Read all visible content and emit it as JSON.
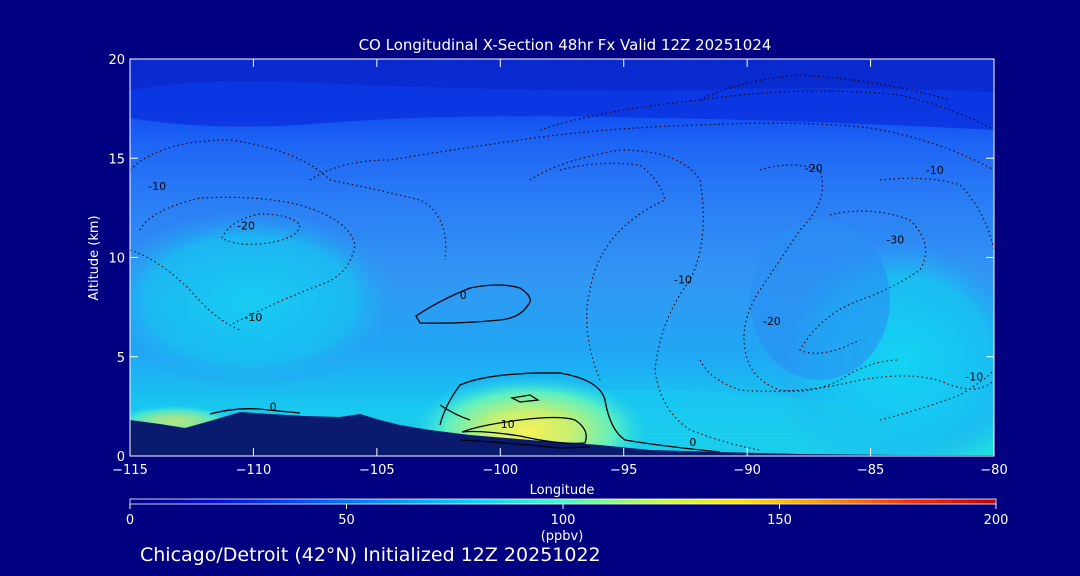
{
  "chart_data": {
    "type": "heatmap",
    "title": "CO Longitudinal X-Section 48hr  Fx Valid 12Z 20251024",
    "xlabel": "Longitude",
    "ylabel": "Altitude (km)",
    "xlim": [
      -115,
      -80
    ],
    "ylim": [
      0,
      20
    ],
    "xticks": [
      -115,
      -110,
      -105,
      -100,
      -95,
      -90,
      -85,
      -80
    ],
    "yticks": [
      0,
      5,
      10,
      15,
      20
    ],
    "xtick_labels": [
      "−115",
      "−110",
      "−105",
      "−100",
      "−95",
      "−90",
      "−85",
      "−80"
    ],
    "ytick_labels": [
      "0",
      "5",
      "10",
      "15",
      "20"
    ],
    "colorbar": {
      "label": "(ppbv)",
      "range": [
        0,
        200
      ],
      "ticks": [
        0,
        50,
        100,
        150,
        200
      ],
      "tick_labels": [
        "0",
        "50",
        "100",
        "150",
        "200"
      ]
    },
    "shaded_field_ppbv": [
      {
        "alt_km": 19,
        "co": 20
      },
      {
        "alt_km": 16.5,
        "co": 30
      },
      {
        "alt_km": 14,
        "co": 40
      },
      {
        "alt_km": 10,
        "co": 55
      },
      {
        "alt_km": 6,
        "co": 60
      },
      {
        "alt_km": 3,
        "co": 75
      },
      {
        "alt_km": 1.5,
        "co": 105
      }
    ],
    "contour_labels": [
      {
        "text": "-10",
        "lon": -113.9,
        "alt": 13.4
      },
      {
        "text": "-20",
        "lon": -110.3,
        "alt": 11.4
      },
      {
        "text": "-10",
        "lon": -110.0,
        "alt": 6.8
      },
      {
        "text": "-20",
        "lon": -87.3,
        "alt": 14.3
      },
      {
        "text": "-10",
        "lon": -82.4,
        "alt": 14.2
      },
      {
        "text": "-30",
        "lon": -84.0,
        "alt": 10.7
      },
      {
        "text": "-10",
        "lon": -92.6,
        "alt": 8.7
      },
      {
        "text": "-20",
        "lon": -89.0,
        "alt": 6.6
      },
      {
        "text": "-10",
        "lon": -80.8,
        "alt": 3.8
      },
      {
        "text": "0",
        "lon": -101.5,
        "alt": 7.9
      },
      {
        "text": "0",
        "lon": -109.2,
        "alt": 2.3
      },
      {
        "text": "10",
        "lon": -99.7,
        "alt": 1.4
      },
      {
        "text": "0",
        "lon": -92.2,
        "alt": 0.5
      }
    ]
  },
  "footer": {
    "caption": "Chicago/Detroit (42°N) Initialized 12Z 20251022"
  },
  "colors": {
    "background": "#000080",
    "foreground": "#ffffff",
    "contour": "#000000",
    "terrain": "#0a1a6e"
  }
}
